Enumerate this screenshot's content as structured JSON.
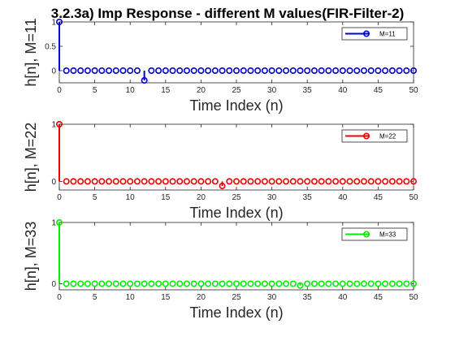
{
  "title": "3.2.3a) Imp Response - different M values(FIR-Filter-2)",
  "chart_data": [
    {
      "type": "stem",
      "color": "#0000CC",
      "legend": "M=11",
      "legend_position": "top-right",
      "xlabel": "Time Index (n)",
      "ylabel": "h[n], M=11",
      "xlim": [
        0,
        50
      ],
      "ylim": [
        -0.25,
        1
      ],
      "xticks": [
        "0",
        "5",
        "10",
        "15",
        "20",
        "25",
        "30",
        "35",
        "40",
        "45",
        "50"
      ],
      "yticks": [
        "0",
        "0.5",
        "1"
      ],
      "x": [
        0,
        1,
        2,
        3,
        4,
        5,
        6,
        7,
        8,
        9,
        10,
        11,
        12,
        13,
        14,
        15,
        16,
        17,
        18,
        19,
        20,
        21,
        22,
        23,
        24,
        25,
        26,
        27,
        28,
        29,
        30,
        31,
        32,
        33,
        34,
        35,
        36,
        37,
        38,
        39,
        40,
        41,
        42,
        43,
        44,
        45,
        46,
        47,
        48,
        49,
        50
      ],
      "y": [
        1,
        0,
        0,
        0,
        0,
        0,
        0,
        0,
        0,
        0,
        0,
        0,
        -0.2,
        0,
        0,
        0,
        0,
        0,
        0,
        0,
        0,
        0,
        0,
        0,
        0,
        0,
        0,
        0,
        0,
        0,
        0,
        0,
        0,
        0,
        0,
        0,
        0,
        0,
        0,
        0,
        0,
        0,
        0,
        0,
        0,
        0,
        0,
        0,
        0,
        0,
        0
      ]
    },
    {
      "type": "stem",
      "color": "#EE0000",
      "legend": "M=22",
      "legend_position": "top-right",
      "xlabel": "Time Index (n)",
      "ylabel": "h[n], M=22",
      "xlim": [
        0,
        50
      ],
      "ylim": [
        -0.15,
        1
      ],
      "xticks": [
        "0",
        "5",
        "10",
        "15",
        "20",
        "25",
        "30",
        "35",
        "40",
        "45",
        "50"
      ],
      "yticks": [
        "0",
        "1"
      ],
      "x": [
        0,
        1,
        2,
        3,
        4,
        5,
        6,
        7,
        8,
        9,
        10,
        11,
        12,
        13,
        14,
        15,
        16,
        17,
        18,
        19,
        20,
        21,
        22,
        23,
        24,
        25,
        26,
        27,
        28,
        29,
        30,
        31,
        32,
        33,
        34,
        35,
        36,
        37,
        38,
        39,
        40,
        41,
        42,
        43,
        44,
        45,
        46,
        47,
        48,
        49,
        50
      ],
      "y": [
        1,
        0,
        0,
        0,
        0,
        0,
        0,
        0,
        0,
        0,
        0,
        0,
        0,
        0,
        0,
        0,
        0,
        0,
        0,
        0,
        0,
        0,
        0,
        -0.08,
        0,
        0,
        0,
        0,
        0,
        0,
        0,
        0,
        0,
        0,
        0,
        0,
        0,
        0,
        0,
        0,
        0,
        0,
        0,
        0,
        0,
        0,
        0,
        0,
        0,
        0,
        0
      ]
    },
    {
      "type": "stem",
      "color": "#00EE00",
      "legend": "M=33",
      "legend_position": "top-right",
      "xlabel": "Time Index (n)",
      "ylabel": "h[n], M=33",
      "xlim": [
        0,
        50
      ],
      "ylim": [
        -0.1,
        1
      ],
      "xticks": [
        "0",
        "5",
        "10",
        "15",
        "20",
        "25",
        "30",
        "35",
        "40",
        "45",
        "50"
      ],
      "yticks": [
        "0",
        "1"
      ],
      "x": [
        0,
        1,
        2,
        3,
        4,
        5,
        6,
        7,
        8,
        9,
        10,
        11,
        12,
        13,
        14,
        15,
        16,
        17,
        18,
        19,
        20,
        21,
        22,
        23,
        24,
        25,
        26,
        27,
        28,
        29,
        30,
        31,
        32,
        33,
        34,
        35,
        36,
        37,
        38,
        39,
        40,
        41,
        42,
        43,
        44,
        45,
        46,
        47,
        48,
        49,
        50
      ],
      "y": [
        1,
        0,
        0,
        0,
        0,
        0,
        0,
        0,
        0,
        0,
        0,
        0,
        0,
        0,
        0,
        0,
        0,
        0,
        0,
        0,
        0,
        0,
        0,
        0,
        0,
        0,
        0,
        0,
        0,
        0,
        0,
        0,
        0,
        0,
        -0.03,
        0,
        0,
        0,
        0,
        0,
        0,
        0,
        0,
        0,
        0,
        0,
        0,
        0,
        0,
        0,
        0
      ]
    }
  ]
}
